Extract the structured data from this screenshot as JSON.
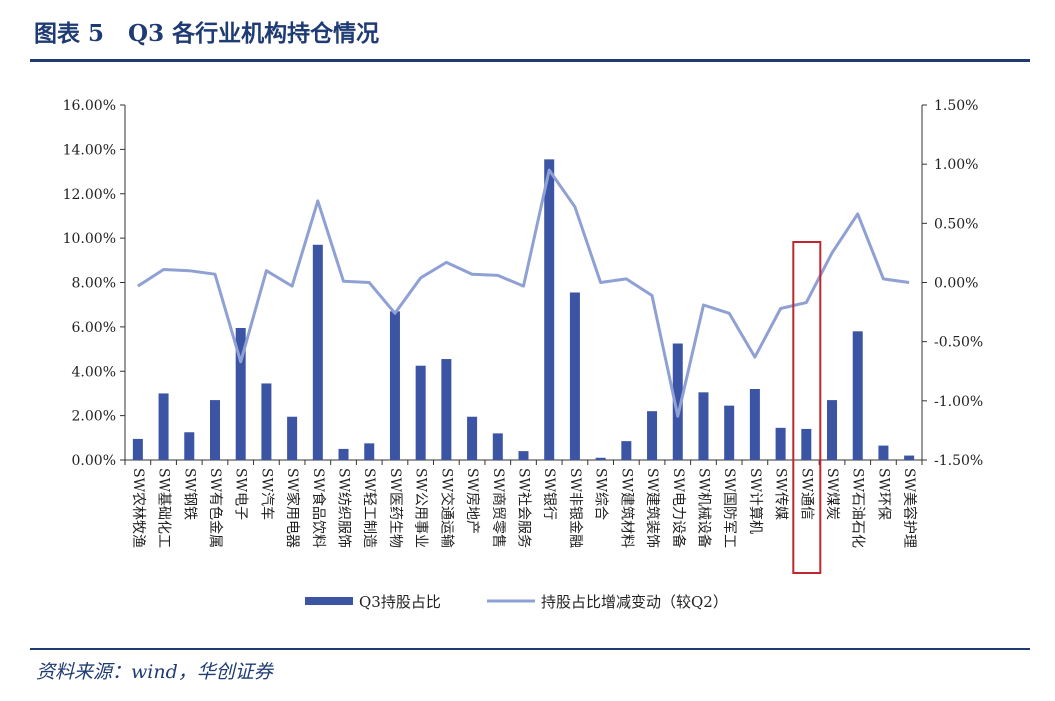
{
  "header": {
    "title": "图表 5   Q3 各行业机构持仓情况"
  },
  "footer": {
    "source": "资料来源：wind，华创证券"
  },
  "chart_data": {
    "type": "bar+line",
    "categories": [
      "SW农林牧渔",
      "SW基础化工",
      "SW钢铁",
      "SW有色金属",
      "SW电子",
      "SW汽车",
      "SW家用电器",
      "SW食品饮料",
      "SW纺织服饰",
      "SW轻工制造",
      "SW医药生物",
      "SW公用事业",
      "SW交通运输",
      "SW房地产",
      "SW商贸零售",
      "SW社会服务",
      "SW银行",
      "SW非银金融",
      "SW综合",
      "SW建筑材料",
      "SW建筑装饰",
      "SW电力设备",
      "SW机械设备",
      "SW国防军工",
      "SW计算机",
      "SW传媒",
      "SW通信",
      "SW煤炭",
      "SW石油石化",
      "SW环保",
      "SW美容护理"
    ],
    "series": [
      {
        "name": "Q3持股占比",
        "type": "bar",
        "axis": "left",
        "color": "#3b54a3",
        "values": [
          0.95,
          3.0,
          1.25,
          2.7,
          5.95,
          3.45,
          1.95,
          9.7,
          0.5,
          0.75,
          6.7,
          4.25,
          4.55,
          1.95,
          1.2,
          0.4,
          13.55,
          7.55,
          0.1,
          0.85,
          2.2,
          5.25,
          3.05,
          2.45,
          3.2,
          1.45,
          1.4,
          2.7,
          5.8,
          0.65,
          0.2
        ]
      },
      {
        "name": "持股占比增减变动（较Q2）",
        "type": "line",
        "axis": "right",
        "color": "#8fa0d4",
        "values": [
          -0.03,
          0.11,
          0.1,
          0.07,
          -0.67,
          0.1,
          -0.03,
          0.69,
          0.01,
          0.0,
          -0.26,
          0.04,
          0.17,
          0.07,
          0.06,
          -0.03,
          0.95,
          0.64,
          0.0,
          0.03,
          -0.11,
          -1.13,
          -0.19,
          -0.26,
          -0.63,
          -0.22,
          -0.17,
          0.25,
          0.58,
          0.03,
          0.0
        ]
      }
    ],
    "left_axis": {
      "ticks": [
        "0.00%",
        "2.00%",
        "4.00%",
        "6.00%",
        "8.00%",
        "10.00%",
        "12.00%",
        "14.00%",
        "16.00%"
      ],
      "ylim": [
        0,
        16
      ]
    },
    "right_axis": {
      "ticks": [
        "-1.50%",
        "-1.00%",
        "-0.50%",
        "0.00%",
        "0.50%",
        "1.00%",
        "1.50%"
      ],
      "ylim": [
        -1.5,
        1.5
      ]
    },
    "highlight": {
      "category": "SW通信",
      "color": "#c0262d"
    },
    "legend": {
      "placement": "bottom"
    }
  }
}
